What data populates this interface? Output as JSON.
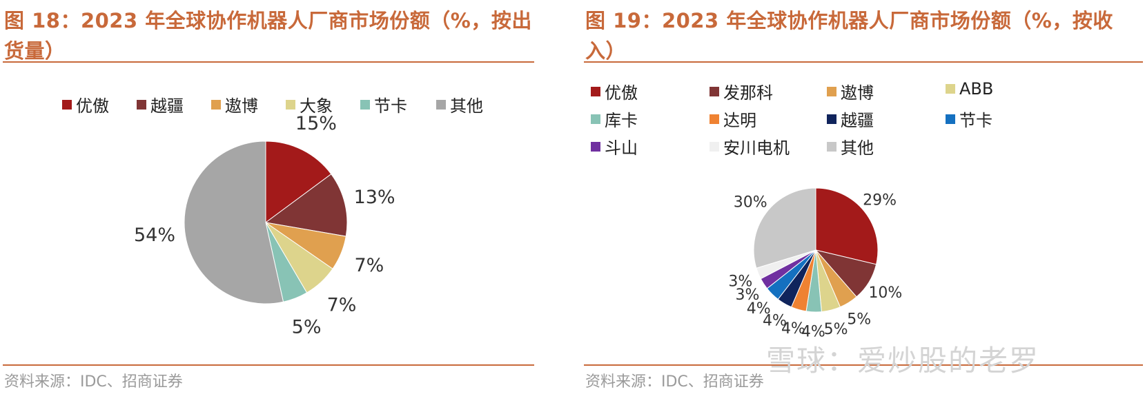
{
  "panel_left": {
    "title": "图 18：2023 年全球协作机器人厂商市场份额（%，按出货量）",
    "source": "资料来源：IDC、招商证券"
  },
  "panel_right": {
    "title": "图 19：2023 年全球协作机器人厂商市场份额（%，按收入）",
    "source": "资料来源：IDC、招商证券"
  },
  "watermark": "雪球：爱炒股的老罗",
  "chart_data": [
    {
      "type": "pie",
      "title": "",
      "start_angle_deg": 0,
      "direction": "clockwise",
      "legend_position": "top",
      "slices": [
        {
          "label": "优傲",
          "value": 15,
          "color": "#a31a1a"
        },
        {
          "label": "越疆",
          "value": 13,
          "color": "#803535"
        },
        {
          "label": "遨博",
          "value": 7,
          "color": "#e0a04f"
        },
        {
          "label": "大象",
          "value": 7,
          "color": "#ddd48c"
        },
        {
          "label": "节卡",
          "value": 5,
          "color": "#88c3b5"
        },
        {
          "label": "其他",
          "value": 54,
          "color": "#a6a6a6"
        }
      ],
      "value_labels": [
        "15%",
        "13%",
        "7%",
        "7%",
        "5%",
        "54%"
      ]
    },
    {
      "type": "pie",
      "title": "",
      "start_angle_deg": 0,
      "direction": "clockwise",
      "legend_position": "top",
      "slices": [
        {
          "label": "优傲",
          "value": 29,
          "color": "#a31a1a"
        },
        {
          "label": "发那科",
          "value": 10,
          "color": "#803535"
        },
        {
          "label": "遨博",
          "value": 5,
          "color": "#e0a04f"
        },
        {
          "label": "ABB",
          "value": 5,
          "color": "#ddd48c"
        },
        {
          "label": "库卡",
          "value": 4,
          "color": "#88c3b5"
        },
        {
          "label": "达明",
          "value": 4,
          "color": "#ef8232"
        },
        {
          "label": "越疆",
          "value": 4,
          "color": "#10245c"
        },
        {
          "label": "节卡",
          "value": 4,
          "color": "#1470c0"
        },
        {
          "label": "斗山",
          "value": 3,
          "color": "#7030a0"
        },
        {
          "label": "安川电机",
          "value": 3,
          "color": "#f0f0f0"
        },
        {
          "label": "其他",
          "value": 30,
          "color": "#c8c8c8"
        }
      ],
      "value_labels": [
        "29%",
        "10%",
        "5%",
        "5%",
        "4%",
        "4%",
        "4%",
        "4%",
        "3%",
        "3%",
        "30%"
      ]
    }
  ]
}
